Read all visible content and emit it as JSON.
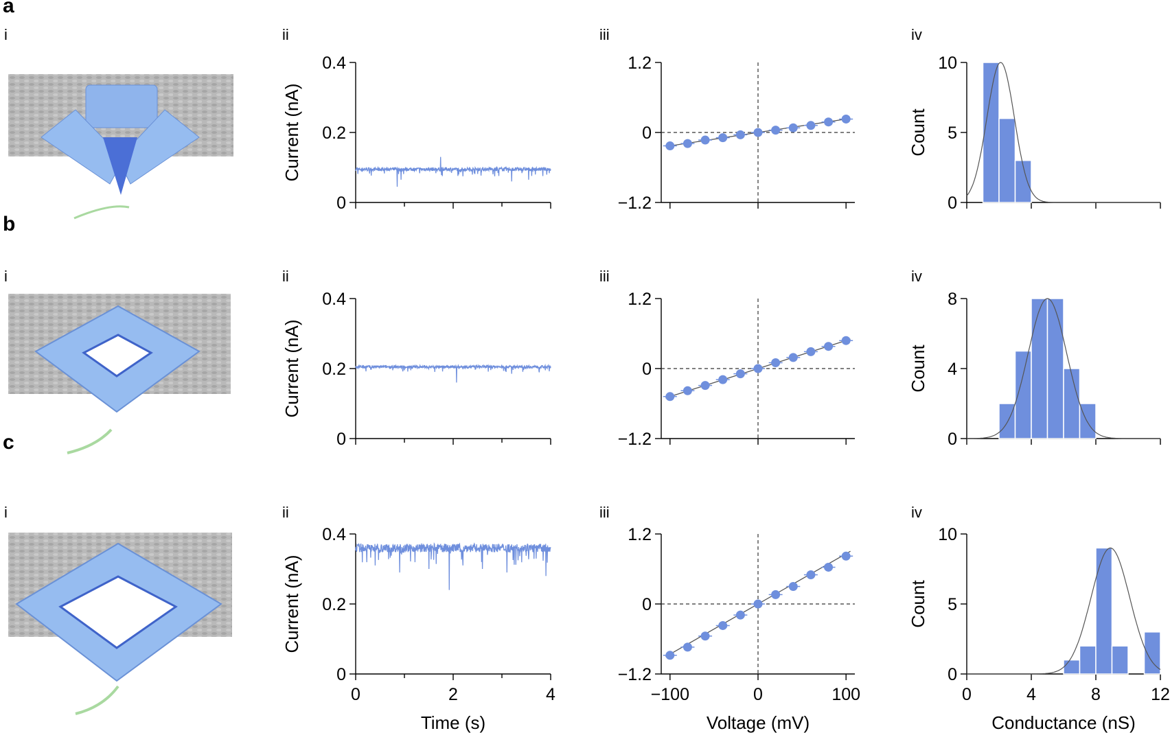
{
  "panels": [
    {
      "label": "a",
      "sub": [
        "i",
        "ii",
        "iii",
        "iv"
      ]
    },
    {
      "label": "b",
      "sub": [
        "i",
        "ii",
        "iii",
        "iv"
      ]
    },
    {
      "label": "c",
      "sub": [
        "i",
        "ii",
        "iii",
        "iv"
      ]
    }
  ],
  "colors": {
    "data": "#6f8fdd",
    "fit": "#555555",
    "axis": "#000000",
    "render_grey": "#b3b3b3",
    "render_blue": "#8fb4ec",
    "arrow": "#a9d9a0"
  },
  "icons": {
    "renders": "dna-origami-nanopore-render",
    "arrow": "green-curved-arrow-icon"
  },
  "chart_data": [
    {
      "panel": "a-ii",
      "type": "line",
      "xlabel": "",
      "ylabel": "Current (nA)",
      "xlim": [
        0,
        4
      ],
      "ylim": [
        0,
        0.4
      ],
      "xticks": [],
      "yticks": [
        "0",
        "0.2",
        "0.4"
      ],
      "baseline": 0.095,
      "noise": 0.005,
      "spikes": [
        [
          0.85,
          0.045
        ],
        [
          0.93,
          0.065
        ],
        [
          1.74,
          0.13
        ],
        [
          2.2,
          0.075
        ],
        [
          2.85,
          0.075
        ],
        [
          3.2,
          0.06
        ],
        [
          3.55,
          0.065
        ]
      ]
    },
    {
      "panel": "a-iii",
      "type": "scatter",
      "xlabel": "",
      "ylabel": "",
      "xlim": [
        -110,
        110
      ],
      "ylim": [
        -1.2,
        1.2
      ],
      "xticks": [],
      "yticks": [
        "−1.2",
        "0",
        "1.2"
      ],
      "x": [
        -100,
        -80,
        -60,
        -40,
        -20,
        0,
        20,
        40,
        60,
        80,
        100
      ],
      "y": [
        -0.23,
        -0.19,
        -0.13,
        -0.09,
        -0.04,
        0,
        0.04,
        0.08,
        0.12,
        0.18,
        0.23
      ],
      "fit_slope": 0.0023
    },
    {
      "panel": "a-iv",
      "type": "bar",
      "xlabel": "",
      "ylabel": "Count",
      "xlim": [
        0,
        12
      ],
      "ylim": [
        0,
        10
      ],
      "xticks": [],
      "yticks": [
        "0",
        "5",
        "10"
      ],
      "bin_edges": [
        1,
        2,
        3,
        4
      ],
      "counts": [
        10,
        6,
        3
      ],
      "fit": {
        "amp": 10,
        "mu": 2.1,
        "sigma": 0.85
      }
    },
    {
      "panel": "b-ii",
      "type": "line",
      "xlabel": "",
      "ylabel": "Current (nA)",
      "xlim": [
        0,
        4
      ],
      "ylim": [
        0,
        0.4
      ],
      "xticks": [],
      "yticks": [
        "0",
        "0.2",
        "0.4"
      ],
      "baseline": 0.205,
      "noise": 0.004,
      "spikes": [
        [
          2.07,
          0.16
        ],
        [
          3.2,
          0.185
        ]
      ]
    },
    {
      "panel": "b-iii",
      "type": "scatter",
      "xlabel": "",
      "ylabel": "",
      "xlim": [
        -110,
        110
      ],
      "ylim": [
        -1.2,
        1.2
      ],
      "xticks": [],
      "yticks": [
        "−1.2",
        "0",
        "1.2"
      ],
      "x": [
        -100,
        -80,
        -60,
        -40,
        -20,
        0,
        20,
        40,
        60,
        80,
        100
      ],
      "y": [
        -0.48,
        -0.38,
        -0.29,
        -0.19,
        -0.09,
        0,
        0.1,
        0.19,
        0.29,
        0.38,
        0.48
      ],
      "fit_slope": 0.0048
    },
    {
      "panel": "b-iv",
      "type": "bar",
      "xlabel": "",
      "ylabel": "Count",
      "xlim": [
        0,
        12
      ],
      "ylim": [
        0,
        8
      ],
      "xticks": [],
      "yticks": [
        "0",
        "4",
        "8"
      ],
      "bin_edges": [
        2,
        3,
        4,
        5,
        6,
        7,
        8
      ],
      "counts": [
        2,
        5,
        8,
        8,
        4,
        2
      ],
      "fit": {
        "amp": 8,
        "mu": 5.0,
        "sigma": 1.2
      }
    },
    {
      "panel": "c-ii",
      "type": "line",
      "xlabel": "Time (s)",
      "ylabel": "Current (nA)",
      "xlim": [
        0,
        4
      ],
      "ylim": [
        0,
        0.4
      ],
      "xticks": [
        "0",
        "2",
        "4"
      ],
      "yticks": [
        "0",
        "0.2",
        "0.4"
      ],
      "baseline": 0.36,
      "noise": 0.012,
      "spikes": [
        [
          0.4,
          0.31
        ],
        [
          0.9,
          0.29
        ],
        [
          1.5,
          0.3
        ],
        [
          1.92,
          0.24
        ],
        [
          2.2,
          0.31
        ],
        [
          2.6,
          0.3
        ],
        [
          3.1,
          0.29
        ],
        [
          3.9,
          0.28
        ]
      ]
    },
    {
      "panel": "c-iii",
      "type": "scatter",
      "xlabel": "Voltage (mV)",
      "ylabel": "",
      "xlim": [
        -110,
        110
      ],
      "ylim": [
        -1.2,
        1.2
      ],
      "xticks": [
        "−100",
        "0",
        "100"
      ],
      "yticks": [
        "−1.2",
        "0",
        "1.2"
      ],
      "x": [
        -100,
        -80,
        -60,
        -40,
        -20,
        0,
        20,
        40,
        60,
        80,
        100
      ],
      "y": [
        -0.88,
        -0.74,
        -0.55,
        -0.37,
        -0.19,
        0,
        0.16,
        0.3,
        0.5,
        0.63,
        0.82
      ],
      "fit_slope": 0.0086
    },
    {
      "panel": "c-iv",
      "type": "bar",
      "xlabel": "Conductance (nS)",
      "ylabel": "Count",
      "xlim": [
        0,
        12
      ],
      "ylim": [
        0,
        10
      ],
      "xticks": [
        "0",
        "4",
        "8",
        "12"
      ],
      "yticks": [
        "0",
        "5",
        "10"
      ],
      "bin_edges": [
        6,
        7,
        8,
        9,
        10,
        11,
        12
      ],
      "counts": [
        1,
        2,
        9,
        2,
        0,
        3
      ],
      "fit": {
        "amp": 9,
        "mu": 8.9,
        "sigma": 1.2
      }
    }
  ]
}
